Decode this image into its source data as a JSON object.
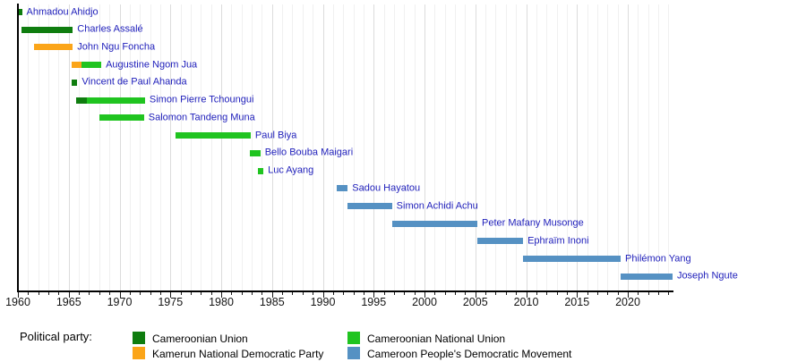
{
  "chart_data": {
    "type": "timeline",
    "title": "",
    "x_axis": {
      "min": 1960,
      "max": 2024.5,
      "major_tick_interval": 5,
      "minor_tick_interval": 1,
      "major_tick_labels": [
        "1960",
        "1965",
        "1970",
        "1975",
        "1980",
        "1985",
        "1990",
        "1995",
        "2000",
        "2005",
        "2010",
        "2015",
        "2020"
      ],
      "grid": true
    },
    "parties": {
      "CU": {
        "name": "Cameroonian Union",
        "color": "#0f7d0f"
      },
      "KNDP": {
        "name": "Kamerun National Democratic Party",
        "color": "#fba519"
      },
      "CNU": {
        "name": "Cameroonian National Union",
        "color": "#20c420"
      },
      "CPDM": {
        "name": "Cameroon People's Democratic Movement",
        "color": "#5591c3"
      }
    },
    "rows": [
      {
        "name": "Ahmadou Ahidjo",
        "segments": [
          {
            "party": "CU",
            "start": 1960.0,
            "end": 1960.4
          }
        ]
      },
      {
        "name": "Charles Assalé",
        "segments": [
          {
            "party": "CU",
            "start": 1960.35,
            "end": 1965.4
          }
        ]
      },
      {
        "name": "John Ngu Foncha",
        "segments": [
          {
            "party": "KNDP",
            "start": 1961.6,
            "end": 1965.4
          }
        ]
      },
      {
        "name": "Augustine Ngom Jua",
        "segments": [
          {
            "party": "KNDP",
            "start": 1965.25,
            "end": 1966.25
          },
          {
            "party": "CNU",
            "start": 1966.25,
            "end": 1968.2
          }
        ]
      },
      {
        "name": "Vincent de Paul Ahanda",
        "segments": [
          {
            "party": "CU",
            "start": 1965.3,
            "end": 1965.85
          }
        ]
      },
      {
        "name": "Simon Pierre Tchoungui",
        "segments": [
          {
            "party": "CU",
            "start": 1965.75,
            "end": 1966.8
          },
          {
            "party": "CNU",
            "start": 1966.8,
            "end": 1972.5
          }
        ]
      },
      {
        "name": "Salomon Tandeng Muna",
        "segments": [
          {
            "party": "CNU",
            "start": 1968.0,
            "end": 1972.4
          }
        ]
      },
      {
        "name": "Paul Biya",
        "segments": [
          {
            "party": "CNU",
            "start": 1975.5,
            "end": 1982.9
          }
        ]
      },
      {
        "name": "Bello Bouba Maigari",
        "segments": [
          {
            "party": "CNU",
            "start": 1982.85,
            "end": 1983.85
          }
        ]
      },
      {
        "name": "Luc Ayang",
        "segments": [
          {
            "party": "CNU",
            "start": 1983.65,
            "end": 1984.15
          }
        ]
      },
      {
        "name": "Sadou Hayatou",
        "segments": [
          {
            "party": "CPDM",
            "start": 1991.4,
            "end": 1992.45
          }
        ]
      },
      {
        "name": "Simon Achidi Achu",
        "segments": [
          {
            "party": "CPDM",
            "start": 1992.45,
            "end": 1996.8
          }
        ]
      },
      {
        "name": "Peter Mafany Musonge",
        "segments": [
          {
            "party": "CPDM",
            "start": 1996.8,
            "end": 2005.2
          }
        ]
      },
      {
        "name": "Ephraïm Inoni",
        "segments": [
          {
            "party": "CPDM",
            "start": 2005.2,
            "end": 2009.7
          }
        ]
      },
      {
        "name": "Philémon Yang",
        "segments": [
          {
            "party": "CPDM",
            "start": 2009.7,
            "end": 2019.3
          }
        ]
      },
      {
        "name": "Joseph Ngute",
        "segments": [
          {
            "party": "CPDM",
            "start": 2019.3,
            "end": 2024.4
          }
        ]
      }
    ]
  },
  "legend": {
    "title": "Political party:",
    "columns": [
      [
        "CU",
        "KNDP"
      ],
      [
        "CNU",
        "CPDM"
      ]
    ]
  },
  "colors": {
    "label_text": "#2121bb",
    "axis": "#000000",
    "grid_minor": "#f0f0f0",
    "grid_major": "#dcdcdc"
  }
}
